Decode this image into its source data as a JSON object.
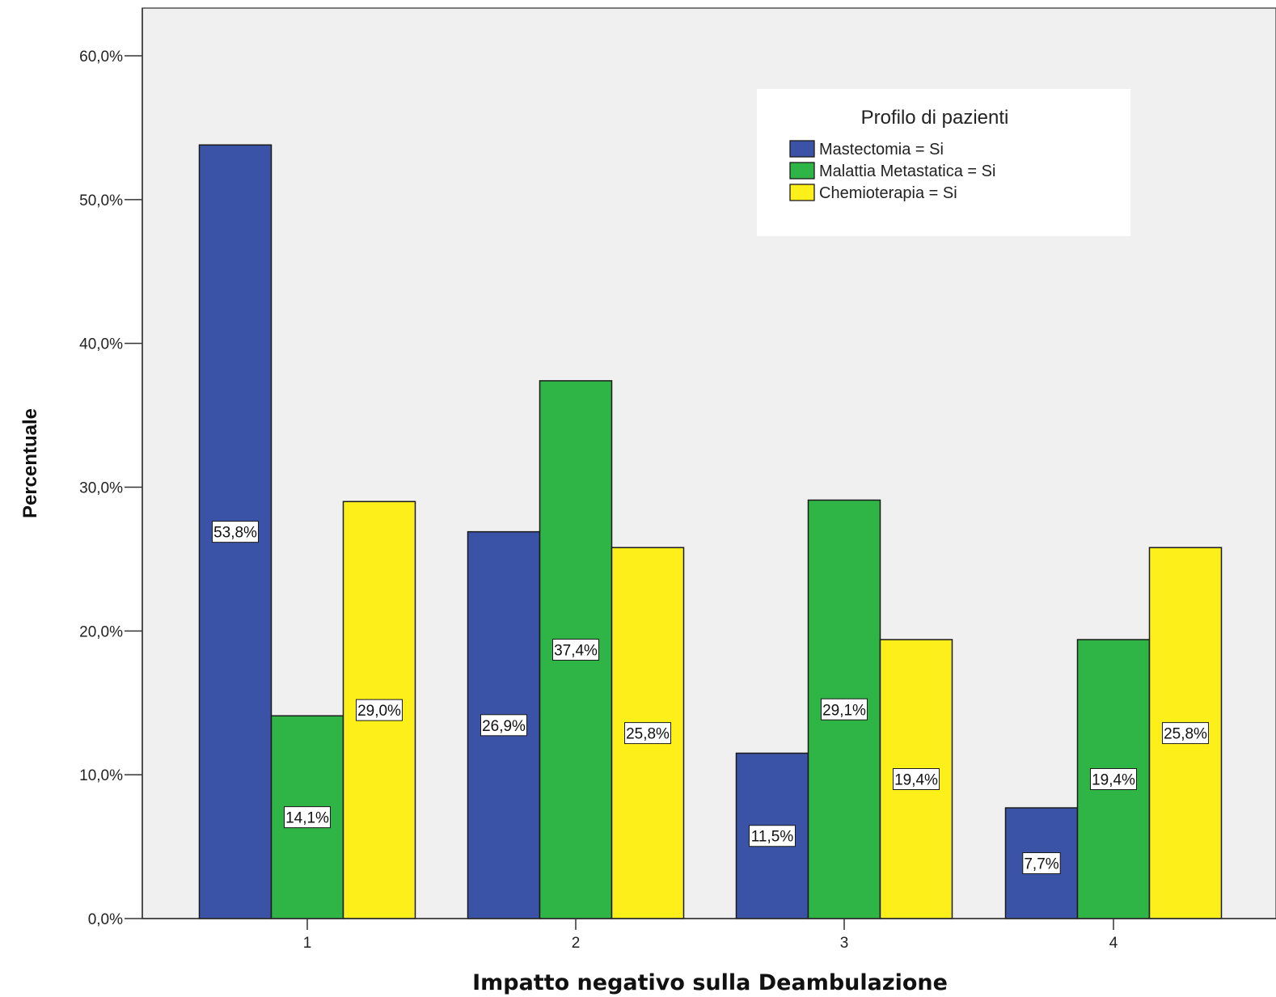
{
  "chart_data": {
    "type": "bar",
    "categories": [
      "1",
      "2",
      "3",
      "4"
    ],
    "series": [
      {
        "name": "Mastectomia = Si",
        "color": "#3b53a6",
        "values": [
          53.8,
          26.9,
          11.5,
          7.7
        ],
        "labels": [
          "53,8%",
          "26,9%",
          "11,5%",
          "7,7%"
        ]
      },
      {
        "name": "Malattia Metastatica = Si",
        "color": "#2fb546",
        "values": [
          14.1,
          37.4,
          29.1,
          19.4
        ],
        "labels": [
          "14,1%",
          "37,4%",
          "29,1%",
          "19,4%"
        ]
      },
      {
        "name": "Chemioterapia = Si",
        "color": "#fcef1a",
        "values": [
          29.0,
          25.8,
          19.4,
          25.8
        ],
        "labels": [
          "29,0%",
          "25,8%",
          "19,4%",
          "25,8%"
        ]
      }
    ],
    "xlabel": "Impatto negativo sulla Deambulazione",
    "ylabel": "Percentuale",
    "ylim": [
      0,
      60
    ],
    "yticks": [
      {
        "value": 0,
        "label": "0,0%"
      },
      {
        "value": 10,
        "label": "10,0%"
      },
      {
        "value": 20,
        "label": "20,0%"
      },
      {
        "value": 30,
        "label": "30,0%"
      },
      {
        "value": 40,
        "label": "40,0%"
      },
      {
        "value": 50,
        "label": "50,0%"
      },
      {
        "value": 60,
        "label": "60,0%"
      }
    ],
    "legend": {
      "title": "Profilo di pazienti",
      "placement": "top-right"
    },
    "background": "#f0f0f0",
    "grid": false
  }
}
